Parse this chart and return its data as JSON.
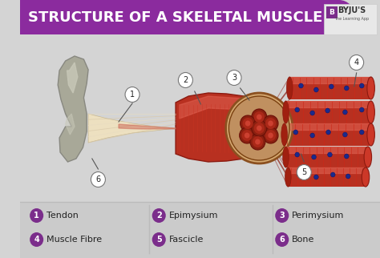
{
  "title": "STRUCTURE OF A SKELETAL MUSCLE",
  "title_color": "#ffffff",
  "title_bg_color": "#8b2b9e",
  "bg_color": "#d4d4d4",
  "legend_items": [
    {
      "num": "1",
      "label": "Tendon"
    },
    {
      "num": "2",
      "label": "Epimysium"
    },
    {
      "num": "3",
      "label": "Perimysium"
    },
    {
      "num": "4",
      "label": "Muscle Fibre"
    },
    {
      "num": "5",
      "label": "Fascicle"
    },
    {
      "num": "6",
      "label": "Bone"
    }
  ],
  "legend_circle_color": "#7b2d8b",
  "legend_text_color": "#222222",
  "divider_color": "#bbbbbb",
  "muscle_red": "#c0392b",
  "muscle_red_light": "#e05050",
  "muscle_dark": "#8b1a10",
  "tendon_color": "#d4c8a8",
  "tendon_light": "#ede0c0",
  "bone_color": "#a8a898",
  "bone_light": "#c8c8b8",
  "fascicle_blue": "#1a2a8c",
  "cross_outer": "#d4a070",
  "cross_inner_bg": "#c08060",
  "fasc_dark": "#7a1008",
  "fasc_light": "#cc3333",
  "ann_nums": [
    "1",
    "2",
    "3",
    "4",
    "5",
    "6"
  ],
  "ann_x": [
    148,
    218,
    282,
    443,
    374,
    103
  ],
  "ann_y": [
    118,
    100,
    97,
    78,
    215,
    224
  ],
  "ann_lx": [
    148,
    230,
    290,
    443,
    374,
    103
  ],
  "ann_ly": [
    129,
    114,
    110,
    91,
    202,
    211
  ],
  "ann_ex": [
    130,
    238,
    302,
    440,
    370,
    95
  ],
  "ann_ey": [
    152,
    130,
    125,
    108,
    192,
    198
  ]
}
